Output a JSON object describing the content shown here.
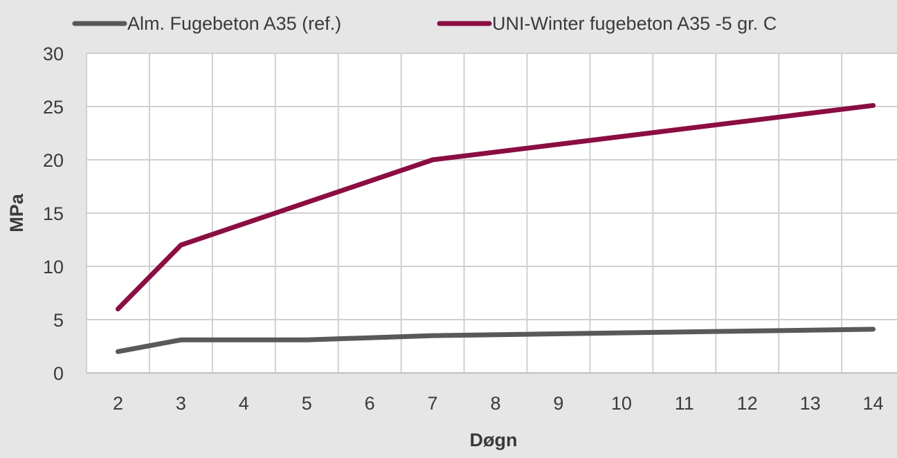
{
  "chart_data": {
    "type": "line",
    "title": "",
    "xlabel": "Døgn",
    "ylabel": "MPa",
    "x": [
      2,
      3,
      4,
      5,
      6,
      7,
      8,
      9,
      10,
      11,
      12,
      13,
      14
    ],
    "ylim": [
      0,
      30
    ],
    "yticks": [
      0,
      5,
      10,
      15,
      20,
      25,
      30
    ],
    "grid": true,
    "legend_position": "top",
    "series": [
      {
        "name": "Alm. Fugebeton A35 (ref.)",
        "color": "#595959",
        "points": [
          [
            2,
            2.0
          ],
          [
            3,
            3.1
          ],
          [
            5,
            3.1
          ],
          [
            7,
            3.5
          ],
          [
            14,
            4.1
          ]
        ]
      },
      {
        "name": "UNI-Winter fugebeton A35 -5 gr. C",
        "color": "#8b0e42",
        "points": [
          [
            2,
            6.0
          ],
          [
            3,
            12.0
          ],
          [
            7,
            20.0
          ],
          [
            14,
            25.1
          ]
        ]
      }
    ]
  }
}
